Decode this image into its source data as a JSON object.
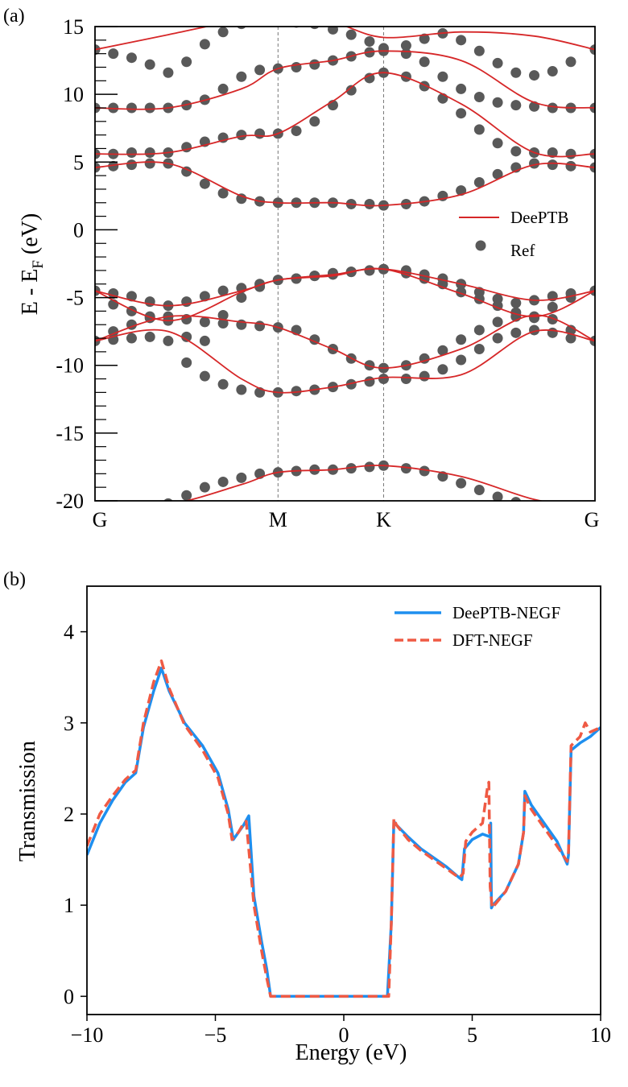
{
  "chart_data": [
    {
      "panel": "(a)",
      "type": "line",
      "ylabel": "E - E_F (eV)",
      "ylabel_main": "E - E",
      "ylabel_sub": "F",
      "ylabel_unit": "(eV)",
      "ylim": [
        -20,
        15
      ],
      "yticks": [
        15,
        10,
        5,
        0,
        -5,
        -10,
        -15,
        -20
      ],
      "kpath": [
        "G",
        "M",
        "K",
        "G"
      ],
      "kpath_positions": [
        0,
        1,
        1.577,
        2.732
      ],
      "legend": {
        "line": "DeePTB",
        "dots": "Ref",
        "placement": "right"
      },
      "colors": {
        "line": "#d62728",
        "dots": "#595959"
      },
      "series": [
        {
          "name": "DeePTB",
          "style": "line",
          "x": [
            0,
            0.4,
            0.8,
            1.0,
            1.3,
            1.577,
            2.0,
            2.4,
            2.732
          ],
          "bands": [
            [
              -20.6,
              -20.3,
              -18.8,
              -17.9,
              -17.7,
              -17.4,
              -18.2,
              -19.9,
              -20.6
            ],
            [
              -8.2,
              -7.5,
              -11.0,
              -12.0,
              -11.6,
              -10.9,
              -10.7,
              -7.5,
              -8.2
            ],
            [
              -8.2,
              -6.4,
              -6.8,
              -7.2,
              -8.8,
              -10.2,
              -8.8,
              -6.3,
              -8.2
            ],
            [
              -4.5,
              -6.7,
              -4.6,
              -3.7,
              -3.4,
              -2.9,
              -4.7,
              -6.4,
              -4.5
            ],
            [
              -4.5,
              -5.6,
              -4.5,
              -3.7,
              -3.3,
              -2.9,
              -4.0,
              -5.2,
              -4.5
            ],
            [
              4.6,
              4.9,
              2.5,
              2.0,
              2.0,
              1.8,
              2.6,
              4.8,
              4.6
            ],
            [
              5.6,
              5.7,
              6.9,
              7.1,
              9.5,
              11.6,
              9.3,
              5.7,
              5.6
            ],
            [
              9.0,
              9.0,
              10.4,
              11.9,
              12.5,
              13.2,
              12.5,
              9.4,
              9.0
            ],
            [
              13.3,
              14.4,
              15.5,
              15.6,
              15.3,
              14.2,
              14.6,
              14.3,
              13.3
            ]
          ]
        },
        {
          "name": "Ref",
          "style": "dots",
          "x": [
            0,
            0.1,
            0.2,
            0.3,
            0.4,
            0.5,
            0.6,
            0.7,
            0.8,
            0.9,
            1.0,
            1.1,
            1.2,
            1.3,
            1.4,
            1.5,
            1.577,
            1.7,
            1.8,
            1.9,
            2.0,
            2.1,
            2.2,
            2.3,
            2.4,
            2.5,
            2.6,
            2.732
          ],
          "bands": [
            [
              -20.6,
              -20.6,
              -20.5,
              -20.4,
              -20.2,
              -19.6,
              -19.0,
              -18.6,
              -18.3,
              -18.0,
              -17.9,
              -17.8,
              -17.7,
              -17.7,
              -17.6,
              -17.5,
              -17.4,
              -17.6,
              -17.8,
              -18.2,
              -18.7,
              -19.2,
              -19.7,
              -20.1,
              -20.4,
              -20.6,
              -20.7,
              -20.6
            ],
            [
              -8.2,
              -8.1,
              -8.0,
              -7.9,
              -8.2,
              -9.8,
              -10.8,
              -11.4,
              -11.8,
              -12.0,
              -12.0,
              -11.9,
              -11.8,
              -11.6,
              -11.4,
              -11.2,
              -11.0,
              -11.0,
              -10.8,
              -10.3,
              -9.6,
              -8.8,
              -8.0,
              -7.6,
              -7.4,
              -7.6,
              -8.0,
              -8.2
            ],
            [
              -8.2,
              -7.5,
              -7.0,
              -6.5,
              -6.4,
              -6.6,
              -6.8,
              -6.9,
              -7.0,
              -7.1,
              -7.2,
              -7.4,
              -8.1,
              -8.8,
              -9.5,
              -10.0,
              -10.2,
              -10.0,
              -9.5,
              -8.9,
              -8.1,
              -7.4,
              -6.8,
              -6.4,
              -6.5,
              -6.6,
              -7.4,
              -8.2
            ],
            [
              -4.5,
              -5.5,
              -6.0,
              -6.4,
              -6.7,
              -7.9,
              -8.2,
              -6.3,
              -5.0,
              -4.2,
              -3.7,
              -3.6,
              -3.4,
              -3.2,
              -3.1,
              -3.0,
              -2.9,
              -3.2,
              -3.6,
              -4.0,
              -4.6,
              -5.1,
              -5.6,
              -6.1,
              -6.4,
              -5.7,
              -5.0,
              -4.5
            ],
            [
              -4.5,
              -4.7,
              -4.9,
              -5.3,
              -5.6,
              -5.3,
              -4.9,
              -4.5,
              -4.3,
              -4.0,
              -3.7,
              -3.6,
              -3.4,
              -3.3,
              -3.1,
              -3.0,
              -2.9,
              -3.0,
              -3.3,
              -3.6,
              -4.0,
              -4.6,
              -5.1,
              -5.4,
              -5.2,
              -4.9,
              -4.7,
              -4.5
            ],
            [
              4.6,
              4.7,
              4.8,
              4.9,
              4.9,
              4.3,
              3.4,
              2.7,
              2.3,
              2.1,
              2.0,
              2.0,
              2.0,
              2.0,
              1.9,
              1.9,
              1.8,
              1.9,
              2.1,
              2.5,
              2.9,
              3.5,
              4.1,
              4.6,
              4.9,
              4.8,
              4.7,
              4.6
            ],
            [
              5.6,
              5.6,
              5.7,
              5.7,
              5.7,
              6.1,
              6.5,
              6.8,
              7.0,
              7.1,
              7.1,
              7.3,
              8.0,
              9.2,
              10.3,
              11.2,
              11.6,
              11.3,
              10.6,
              9.7,
              8.6,
              7.4,
              6.4,
              5.8,
              5.7,
              5.7,
              5.6,
              5.6
            ],
            [
              9.0,
              9.0,
              9.0,
              9.0,
              9.0,
              9.2,
              9.6,
              10.4,
              11.3,
              11.8,
              11.9,
              12.0,
              12.2,
              12.5,
              12.8,
              13.1,
              13.2,
              13.0,
              12.4,
              11.3,
              10.4,
              9.8,
              9.4,
              9.2,
              9.1,
              9.0,
              9.0,
              9.0
            ],
            [
              13.3,
              13.0,
              12.7,
              12.2,
              11.6,
              12.4,
              13.7,
              14.6,
              15.2,
              15.4,
              15.4,
              15.3,
              15.2,
              14.8,
              14.4,
              13.9,
              13.4,
              13.6,
              14.1,
              14.5,
              14.0,
              13.2,
              12.3,
              11.6,
              11.4,
              11.7,
              12.4,
              13.3
            ]
          ]
        }
      ]
    },
    {
      "panel": "(b)",
      "type": "line",
      "xlabel": "Energy (eV)",
      "ylabel": "Transmission",
      "xlim": [
        -10,
        10
      ],
      "ylim": [
        -0.2,
        4.5
      ],
      "xticks": [
        -10,
        -5,
        0,
        5,
        10
      ],
      "yticks": [
        0,
        1,
        2,
        3,
        4
      ],
      "legend": {
        "placement": "top-right"
      },
      "colors": {
        "DeePTB-NEGF": "#1e8fef",
        "DFT-NEGF": "#ef5a44"
      },
      "series": [
        {
          "name": "DeePTB-NEGF",
          "style": "solid",
          "x": [
            -10,
            -9.5,
            -9.0,
            -8.5,
            -8.1,
            -7.8,
            -7.4,
            -7.1,
            -6.8,
            -6.2,
            -5.5,
            -4.9,
            -4.5,
            -4.3,
            -4.1,
            -3.9,
            -3.7,
            -3.5,
            -3.2,
            -3.0,
            -2.85,
            -2.7,
            0,
            1.7,
            1.85,
            1.95,
            2.05,
            2.5,
            3.0,
            3.5,
            4.0,
            4.5,
            4.6,
            4.7,
            5.0,
            5.4,
            5.7,
            5.72,
            5.75,
            5.8,
            6.3,
            6.8,
            7.0,
            7.05,
            7.3,
            7.8,
            8.3,
            8.7,
            8.75,
            8.85,
            9.2,
            9.6,
            10
          ],
          "y": [
            1.55,
            1.9,
            2.15,
            2.35,
            2.45,
            2.95,
            3.35,
            3.6,
            3.35,
            3.0,
            2.75,
            2.45,
            2.05,
            1.72,
            1.8,
            1.88,
            1.98,
            1.1,
            0.6,
            0.3,
            0.0,
            0.0,
            0.0,
            0.0,
            0.8,
            1.92,
            1.88,
            1.75,
            1.62,
            1.52,
            1.42,
            1.3,
            1.28,
            1.62,
            1.72,
            1.78,
            1.75,
            1.9,
            0.97,
            1.0,
            1.15,
            1.45,
            1.8,
            2.25,
            2.1,
            1.9,
            1.7,
            1.45,
            1.55,
            2.7,
            2.78,
            2.85,
            2.95
          ]
        },
        {
          "name": "DFT-NEGF",
          "style": "dashed",
          "x": [
            -10,
            -9.5,
            -9.0,
            -8.5,
            -8.1,
            -7.8,
            -7.4,
            -7.1,
            -6.8,
            -6.2,
            -5.5,
            -4.9,
            -4.5,
            -4.35,
            -4.1,
            -3.9,
            -3.8,
            -3.5,
            -3.2,
            -3.0,
            -2.85,
            -2.8,
            0,
            1.75,
            1.85,
            1.95,
            2.05,
            2.5,
            3.0,
            3.5,
            4.0,
            4.5,
            4.65,
            4.75,
            5.0,
            5.4,
            5.6,
            5.65,
            5.7,
            5.78,
            6.3,
            6.8,
            7.0,
            7.05,
            7.3,
            7.8,
            8.3,
            8.7,
            8.75,
            8.85,
            9.2,
            9.4,
            9.6,
            10
          ],
          "y": [
            1.65,
            2.0,
            2.2,
            2.38,
            2.48,
            3.0,
            3.45,
            3.68,
            3.38,
            2.98,
            2.7,
            2.4,
            2.0,
            1.72,
            1.8,
            1.9,
            1.92,
            1.0,
            0.5,
            0.2,
            0.0,
            0.0,
            0.0,
            0.0,
            0.8,
            1.95,
            1.88,
            1.72,
            1.6,
            1.5,
            1.4,
            1.3,
            1.35,
            1.7,
            1.8,
            1.9,
            2.3,
            2.35,
            1.2,
            0.97,
            1.15,
            1.45,
            1.8,
            2.2,
            2.05,
            1.85,
            1.65,
            1.48,
            1.58,
            2.75,
            2.85,
            3.0,
            2.9,
            2.95
          ]
        }
      ]
    }
  ]
}
